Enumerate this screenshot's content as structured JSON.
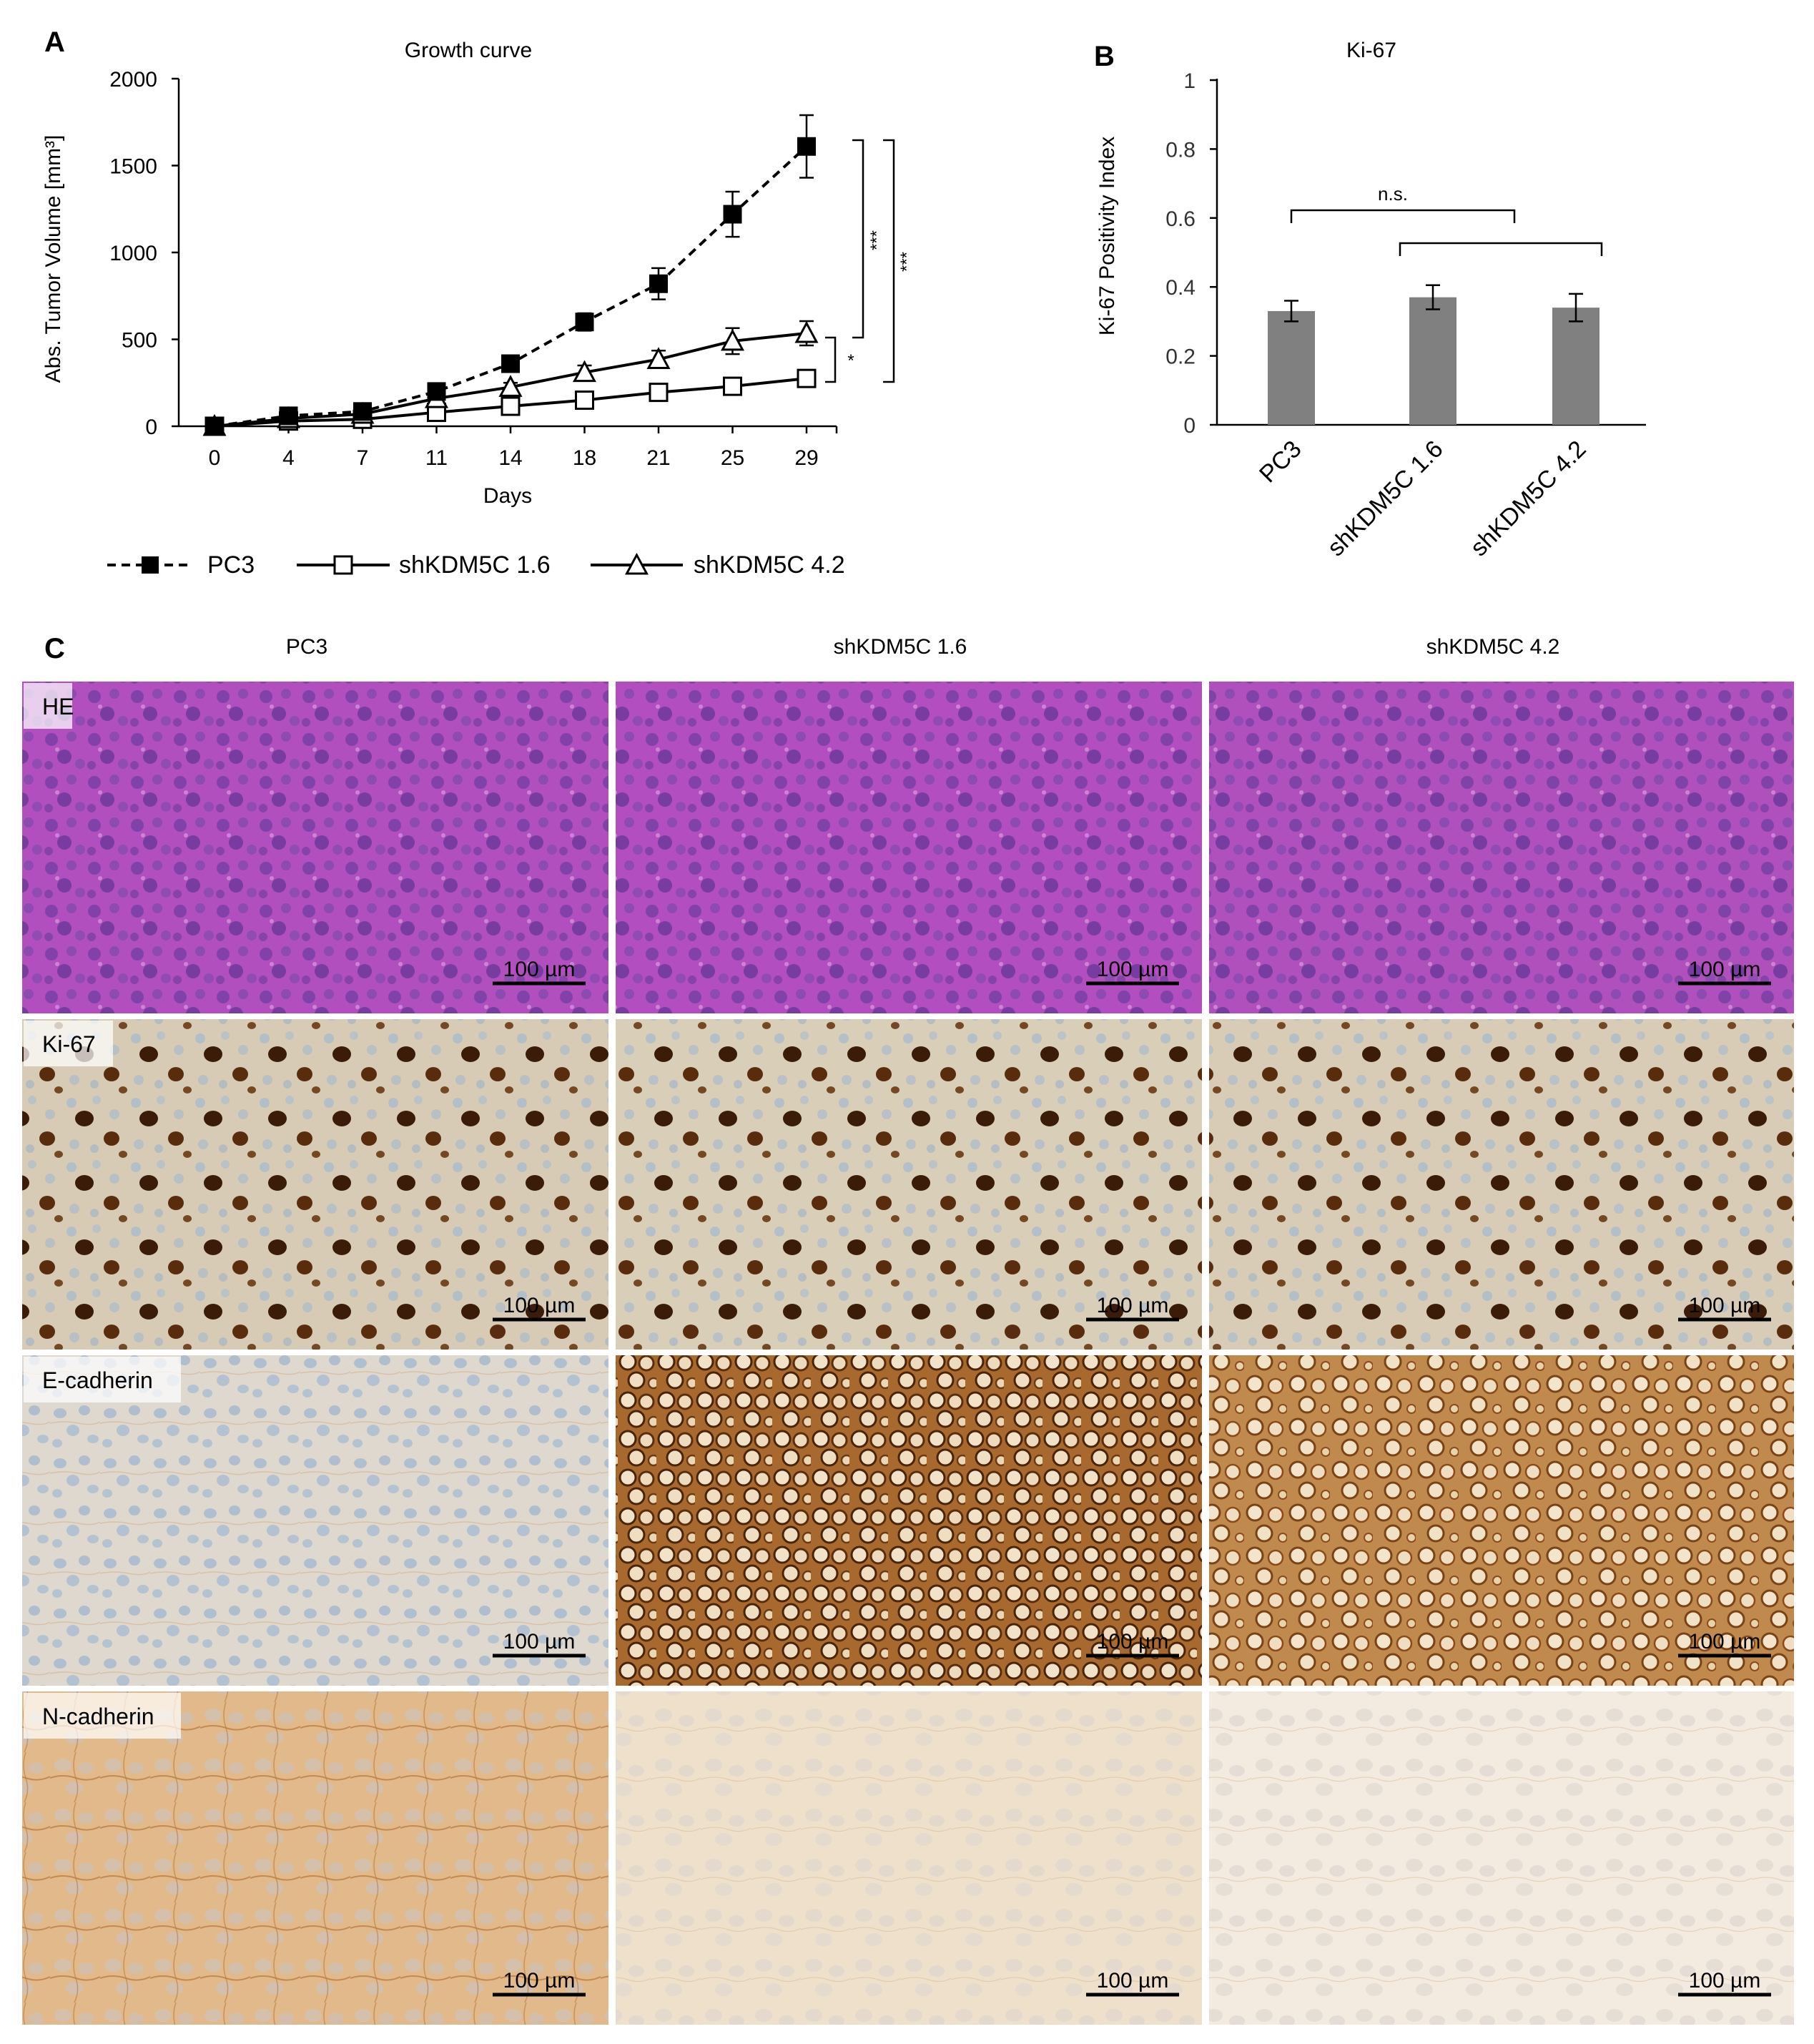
{
  "panels": {
    "a": {
      "letter": "A",
      "significance": {
        "pc3_vs_kd16": "***",
        "pc3_vs_kd42": "***",
        "kd42_vs_kd16": "*"
      }
    },
    "b": {
      "letter": "B",
      "significance": "n.s."
    },
    "c": {
      "letter": "C",
      "columns": [
        "PC3",
        "shKDM5C 1.6",
        "shKDM5C 4.2"
      ],
      "rows": [
        "HE",
        "Ki-67",
        "E-cadherin",
        "N-cadherin"
      ],
      "scale_bar_label": "100 µm",
      "images": [
        [
          "#b14fbe",
          "#b24ebf",
          "#b050bd"
        ],
        [
          "#d7cbb5",
          "#d9ceb8",
          "#d8ccb6"
        ],
        [
          "#dfd8cf",
          "#a8692e",
          "#c08a4f"
        ],
        [
          "#e2b98a",
          "#efe0cc",
          "#f4ebe0"
        ]
      ],
      "stain_colors": {
        "hematoxylin": "#6b3c9e",
        "dab_dark": "#3a1c08",
        "dab_medium": "#8b4a18",
        "blue_nuclei": "#a4b9cf"
      }
    }
  },
  "chart_data": [
    {
      "type": "line",
      "title": "Growth curve",
      "xlabel": "Days",
      "ylabel": "Abs. Tumor Volume [mm³]",
      "x": [
        0,
        4,
        7,
        11,
        14,
        18,
        21,
        25,
        29
      ],
      "ylim": [
        0,
        2000
      ],
      "yticks": [
        0,
        500,
        1000,
        1500,
        2000
      ],
      "grid": false,
      "legend_position": "bottom",
      "series": [
        {
          "name": "PC3",
          "values": [
            0,
            60,
            85,
            200,
            360,
            600,
            820,
            1220,
            1610
          ],
          "errors": [
            0,
            10,
            15,
            25,
            30,
            50,
            90,
            130,
            180
          ],
          "marker": "filled-square",
          "line": "dashed",
          "color": "#000000"
        },
        {
          "name": "shKDM5C 1.6",
          "values": [
            0,
            30,
            40,
            80,
            115,
            150,
            195,
            230,
            275
          ],
          "errors": [
            0,
            8,
            8,
            12,
            15,
            20,
            25,
            30,
            35
          ],
          "marker": "open-square",
          "line": "solid",
          "color": "#000000"
        },
        {
          "name": "shKDM5C 4.2",
          "values": [
            0,
            45,
            70,
            160,
            225,
            310,
            385,
            490,
            535
          ],
          "errors": [
            0,
            10,
            12,
            20,
            25,
            40,
            50,
            75,
            70
          ],
          "marker": "open-triangle",
          "line": "solid",
          "color": "#000000"
        }
      ]
    },
    {
      "type": "bar",
      "title": "Ki-67",
      "xlabel": "",
      "ylabel": "Ki-67 Positivity Index",
      "categories": [
        "PC3",
        "shKDM5C 1.6",
        "shKDM5C 4.2"
      ],
      "values": [
        0.33,
        0.37,
        0.34
      ],
      "errors": [
        0.03,
        0.035,
        0.04
      ],
      "ylim": [
        0,
        1
      ],
      "yticks": [
        0,
        0.2,
        0.4,
        0.6,
        0.8,
        1
      ],
      "ytick_labels": [
        "0",
        "0.2",
        "0.4",
        "0.6",
        "0.8",
        "1"
      ],
      "grid": false,
      "bar_color": "#808080"
    }
  ]
}
